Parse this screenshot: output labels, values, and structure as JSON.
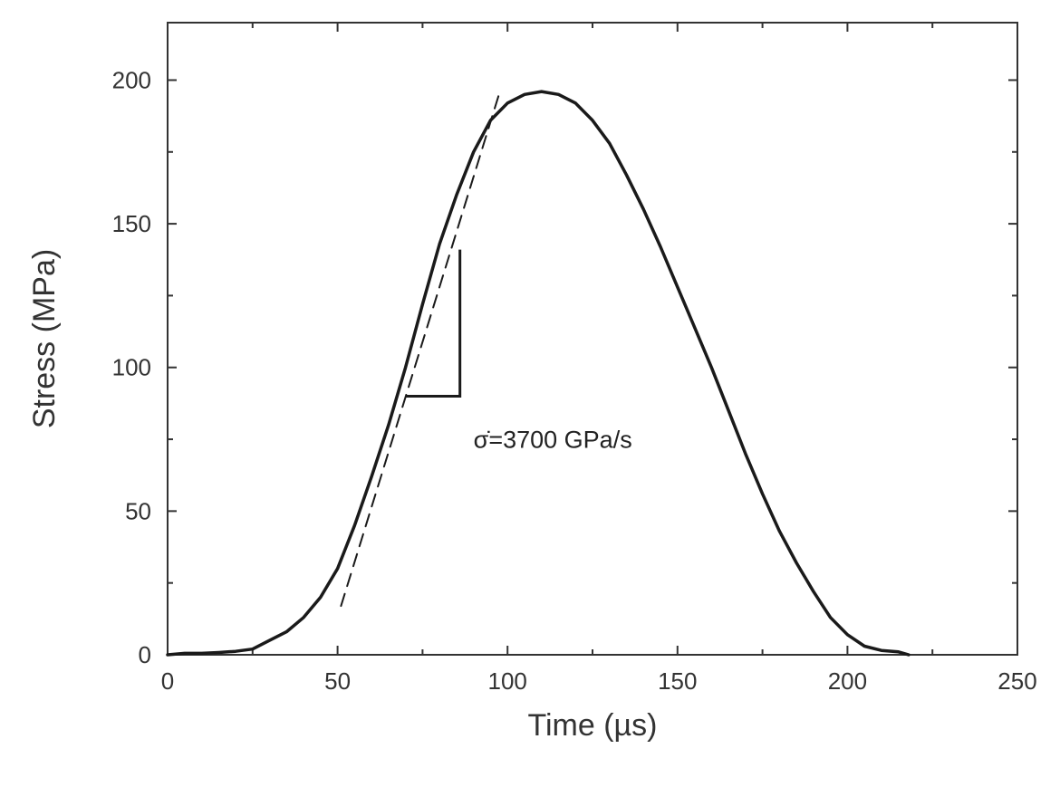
{
  "chart_data": {
    "type": "line",
    "title": "",
    "xlabel": "Time (µs)",
    "ylabel": "Stress (MPa)",
    "xlim": [
      0,
      250
    ],
    "ylim": [
      0,
      220
    ],
    "xticks": [
      0,
      50,
      100,
      150,
      200,
      250
    ],
    "yticks": [
      0,
      50,
      100,
      150,
      200
    ],
    "grid": false,
    "legend": "none",
    "series": [
      {
        "name": "Stress",
        "style": "solid",
        "x": [
          0,
          5,
          10,
          15,
          20,
          25,
          30,
          35,
          40,
          45,
          50,
          55,
          60,
          65,
          70,
          75,
          80,
          85,
          90,
          95,
          100,
          105,
          110,
          115,
          120,
          125,
          130,
          135,
          140,
          145,
          150,
          155,
          160,
          165,
          170,
          175,
          180,
          185,
          190,
          195,
          200,
          205,
          210,
          215,
          218
        ],
        "y": [
          0,
          0.5,
          0.5,
          0.8,
          1.2,
          2,
          5,
          8,
          13,
          20,
          30,
          45,
          62,
          80,
          100,
          122,
          143,
          160,
          175,
          186,
          192,
          195,
          196,
          195,
          192,
          186,
          178,
          167,
          155,
          142,
          128,
          114,
          100,
          85,
          70,
          56,
          43,
          32,
          22,
          13,
          7,
          3,
          1.5,
          1,
          0
        ]
      },
      {
        "name": "Tangent",
        "style": "dashed",
        "x": [
          51,
          98
        ],
        "y": [
          17,
          197
        ]
      }
    ],
    "slope_triangle": {
      "x": [
        70,
        86
      ],
      "y": [
        90,
        141
      ]
    },
    "annotations": [
      {
        "text": "σ̇=3700 GPa/s",
        "x": 90,
        "y": 72
      }
    ]
  }
}
